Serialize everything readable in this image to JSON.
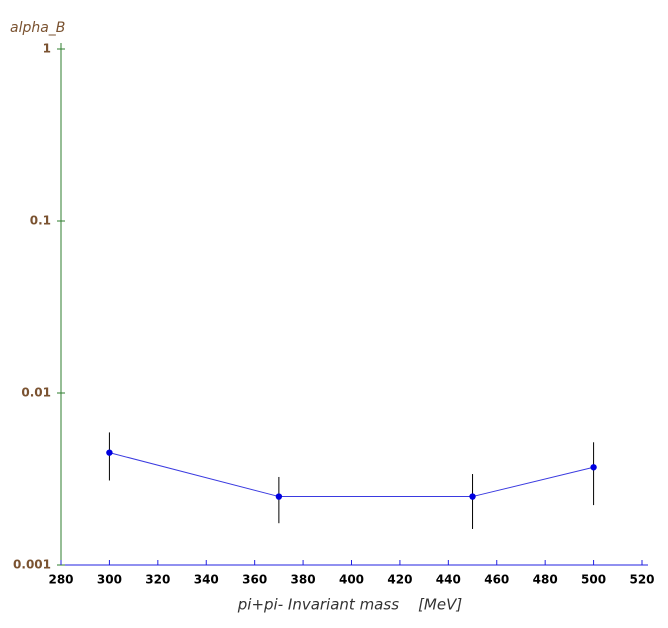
{
  "chart_data": {
    "type": "line",
    "y_label": "alpha_B",
    "x_label": "pi+pi- Invariant mass    [MeV]",
    "x": [
      300,
      370,
      450,
      500
    ],
    "values": [
      0.0045,
      0.0025,
      0.0025,
      0.0037
    ],
    "errors": [
      0.0014,
      0.00075,
      0.00088,
      0.00147
    ],
    "color": "#3a3ae0",
    "marker_color": "#0000e0",
    "error_color": "#000000",
    "x_axis_color": "#2020e0",
    "y_axis_color": "#2e7d2e",
    "y_label_color": "#7a5230",
    "xlim": [
      280,
      520
    ],
    "xticks": [
      280,
      300,
      320,
      340,
      360,
      380,
      400,
      420,
      440,
      460,
      480,
      500,
      520
    ],
    "ylim": [
      0.001,
      1
    ],
    "yticks": [
      0.001,
      0.01,
      0.1,
      1
    ],
    "log_y": true
  }
}
